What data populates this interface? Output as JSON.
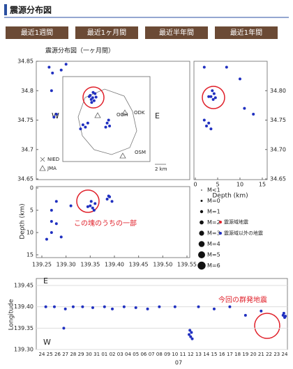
{
  "header": {
    "title": "震源分布図"
  },
  "buttons": [
    "最近1週間",
    "最近1ヶ月間",
    "最近半年間",
    "最近1年間"
  ],
  "figure": {
    "title": "震源分布図（一ヶ月間）",
    "map": {
      "ylim": [
        34.65,
        34.85
      ],
      "xlim": [
        139.25,
        139.55
      ],
      "yticks": [
        {
          "value": 34.85,
          "label": "34.85"
        },
        {
          "value": 34.8,
          "label": "34.8"
        },
        {
          "value": 34.75,
          "label": "34.75"
        },
        {
          "value": 34.7,
          "label": "34.7"
        },
        {
          "value": 34.65,
          "label": "34.65"
        }
      ],
      "labels": {
        "west": "W",
        "east": "E",
        "nied": "NIED",
        "jma": "JMA",
        "ooh": "OOH",
        "odk": "ODK",
        "osm": "OSM",
        "scale": "2 km"
      },
      "points": [
        [
          139.35,
          34.792
        ],
        [
          139.355,
          34.788
        ],
        [
          139.36,
          34.795
        ],
        [
          139.352,
          34.785
        ],
        [
          139.358,
          34.783
        ],
        [
          139.362,
          34.789
        ],
        [
          139.348,
          34.79
        ],
        [
          139.356,
          34.797
        ],
        [
          139.353,
          34.78
        ],
        [
          139.335,
          34.742
        ],
        [
          139.34,
          34.738
        ],
        [
          139.345,
          34.745
        ],
        [
          139.33,
          34.735
        ],
        [
          139.385,
          34.745
        ],
        [
          139.39,
          34.74
        ],
        [
          139.382,
          34.738
        ],
        [
          139.388,
          34.75
        ],
        [
          139.265,
          34.84
        ],
        [
          139.272,
          34.83
        ],
        [
          139.27,
          34.8
        ],
        [
          139.29,
          34.835
        ],
        [
          139.3,
          34.845
        ],
        [
          139.28,
          34.76
        ],
        [
          139.275,
          34.755
        ]
      ]
    },
    "depth_lat": {
      "xlim": [
        0,
        15
      ],
      "ylim": [
        34.65,
        34.85
      ],
      "xticks": [
        0,
        5,
        10,
        15
      ],
      "yticks": [
        {
          "value": 34.8,
          "label": "34.80"
        },
        {
          "value": 34.75,
          "label": "34.75"
        },
        {
          "value": 34.7,
          "label": "34.70"
        },
        {
          "value": 34.65,
          "label": "34.65"
        }
      ],
      "xlabel": "Depth (km)",
      "points": [
        [
          3.5,
          34.79
        ],
        [
          4,
          34.785
        ],
        [
          4.2,
          34.795
        ],
        [
          3.8,
          34.8
        ],
        [
          4.5,
          34.788
        ],
        [
          3,
          34.79
        ],
        [
          2.5,
          34.74
        ],
        [
          3,
          34.745
        ],
        [
          3.5,
          34.735
        ],
        [
          2,
          34.75
        ],
        [
          10,
          34.82
        ],
        [
          11,
          34.77
        ],
        [
          7,
          34.84
        ],
        [
          13,
          34.76
        ],
        [
          2,
          34.84
        ]
      ]
    },
    "lon_depth": {
      "xlim": [
        139.25,
        139.55
      ],
      "ylim": [
        0,
        15
      ],
      "yticks": [
        0,
        5,
        10,
        15
      ],
      "xticks": [
        {
          "value": 139.25,
          "label": "139.25"
        },
        {
          "value": 139.3,
          "label": "139.30"
        },
        {
          "value": 139.35,
          "label": "139.35"
        },
        {
          "value": 139.4,
          "label": "139.40"
        },
        {
          "value": 139.45,
          "label": "139.45"
        },
        {
          "value": 139.5,
          "label": "139.50"
        },
        {
          "value": 139.55,
          "label": "139.55"
        }
      ],
      "ylabel": "Depth (km)",
      "annotation": "この塊のうちの一部",
      "points": [
        [
          139.35,
          4
        ],
        [
          139.355,
          4.5
        ],
        [
          139.36,
          3.5
        ],
        [
          139.345,
          4.2
        ],
        [
          139.358,
          5
        ],
        [
          139.352,
          3
        ],
        [
          139.385,
          2.5
        ],
        [
          139.39,
          2
        ],
        [
          139.395,
          3
        ],
        [
          139.388,
          1.8
        ],
        [
          139.27,
          7.5
        ],
        [
          139.28,
          8
        ],
        [
          139.27,
          10
        ],
        [
          139.26,
          11.5
        ],
        [
          139.29,
          11
        ],
        [
          139.28,
          3
        ],
        [
          139.27,
          5
        ],
        [
          139.31,
          4
        ]
      ]
    },
    "legend": {
      "sizes": [
        "M<1",
        "M=0",
        "M=1",
        "M=2",
        "M=3",
        "M=4",
        "M=5",
        "M=6"
      ],
      "inside": "震源域地震",
      "outside": "震源域以外の地震",
      "inside_color": "#e0202a",
      "outside_color": "#2030c0"
    },
    "time": {
      "ylim": [
        139.3,
        139.45
      ],
      "yticks": [
        {
          "value": 139.45,
          "label": "139.45"
        },
        {
          "value": 139.4,
          "label": "139.40"
        },
        {
          "value": 139.35,
          "label": "139.35"
        },
        {
          "value": 139.3,
          "label": "139.30"
        }
      ],
      "ylabel": "Longitude",
      "east": "E",
      "west": "W",
      "month": "07",
      "annotation": "今回の群発地震",
      "days": [
        "24",
        "25",
        "26",
        "27",
        "28",
        "29",
        "30",
        "31",
        "01",
        "02",
        "03",
        "04",
        "05",
        "06",
        "07",
        "08",
        "09",
        "10",
        "11",
        "12",
        "13",
        "14",
        "15",
        "16",
        "17",
        "18",
        "19",
        "20",
        "21",
        "22",
        "23",
        "24"
      ],
      "points": [
        [
          0.5,
          139.4
        ],
        [
          1.6,
          139.4
        ],
        [
          3,
          139.395
        ],
        [
          4,
          139.4
        ],
        [
          5.2,
          139.4
        ],
        [
          6.5,
          139.398
        ],
        [
          8,
          139.4
        ],
        [
          9,
          139.395
        ],
        [
          10.5,
          139.4
        ],
        [
          12,
          139.398
        ],
        [
          13.5,
          139.395
        ],
        [
          15,
          139.4
        ],
        [
          17,
          139.4
        ],
        [
          18.8,
          139.335
        ],
        [
          19,
          139.33
        ],
        [
          19.2,
          139.325
        ],
        [
          19.1,
          139.34
        ],
        [
          18.9,
          139.345
        ],
        [
          20,
          139.4
        ],
        [
          22,
          139.395
        ],
        [
          24,
          139.4
        ],
        [
          26,
          139.38
        ],
        [
          28,
          139.39
        ],
        [
          30.8,
          139.38
        ],
        [
          31,
          139.375
        ],
        [
          30.9,
          139.385
        ],
        [
          31.1,
          139.378
        ],
        [
          2.8,
          139.35
        ]
      ]
    },
    "point_color": "#2030c0"
  }
}
